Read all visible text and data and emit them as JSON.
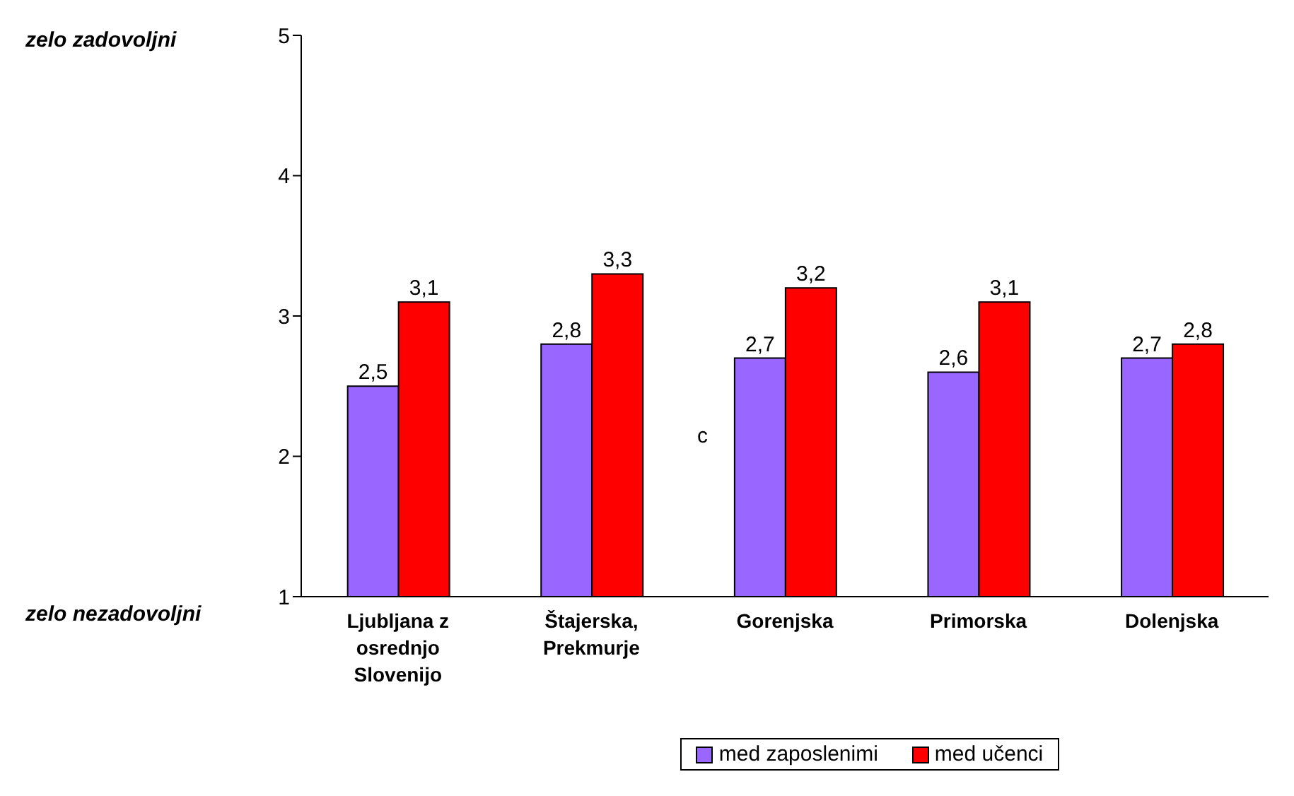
{
  "chart_data": {
    "type": "bar",
    "categories": [
      "Ljubljana z osrednjo Slovenijo",
      "Štajerska, Prekmurje",
      "Gorenjska",
      "Primorska",
      "Dolenjska"
    ],
    "series": [
      {
        "name": "med zaposlenimi",
        "color": "#9966ff",
        "values": [
          2.5,
          2.8,
          2.7,
          2.6,
          2.7
        ],
        "value_labels": [
          "2,5",
          "2,8",
          "2,7",
          "2,6",
          "2,7"
        ]
      },
      {
        "name": "med učenci",
        "color": "#ff0000",
        "values": [
          3.1,
          3.3,
          3.2,
          3.1,
          2.8
        ],
        "value_labels": [
          "3,1",
          "3,3",
          "3,2",
          "3,1",
          "2,8"
        ]
      }
    ],
    "ylim": [
      1,
      5
    ],
    "yticks": [
      1,
      2,
      3,
      4,
      5
    ],
    "grid": false,
    "legend": "bottom",
    "annotations": [
      "zelo zadovoljni",
      "zelo nezadovoljni",
      "c"
    ]
  }
}
